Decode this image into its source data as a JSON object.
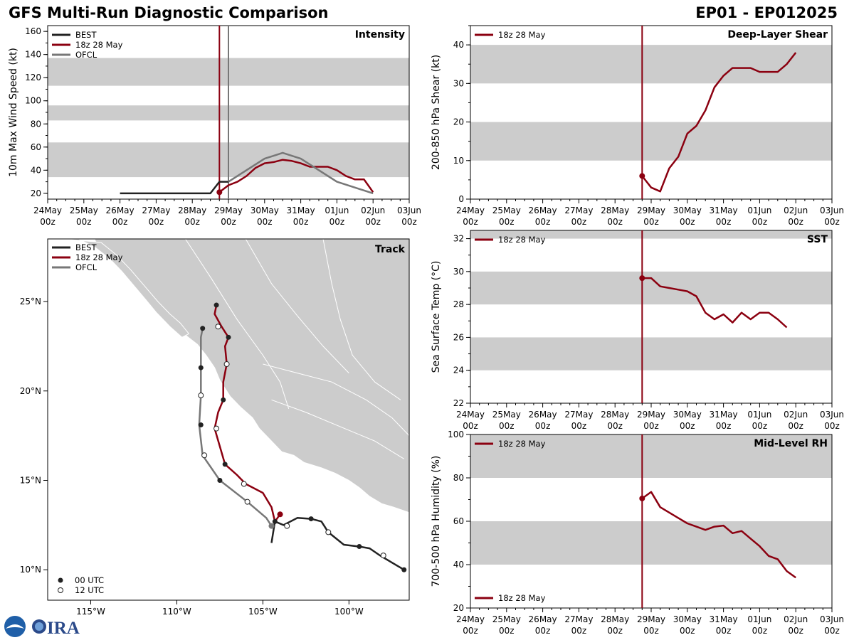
{
  "header": {
    "title": "GFS Multi-Run Diagnostic Comparison",
    "storm_id": "EP01 - EP012025"
  },
  "colors": {
    "best": "#222222",
    "run": "#8b0010",
    "ofcl": "#777777",
    "band": "#cccccc",
    "land": "#cccccc"
  },
  "time_axis": {
    "ticks": [
      {
        "top": "24May",
        "bottom": "00z"
      },
      {
        "top": "25May",
        "bottom": "00z"
      },
      {
        "top": "26May",
        "bottom": "00z"
      },
      {
        "top": "27May",
        "bottom": "00z"
      },
      {
        "top": "28May",
        "bottom": "00z"
      },
      {
        "top": "29May",
        "bottom": "00z"
      },
      {
        "top": "30May",
        "bottom": "00z"
      },
      {
        "top": "31May",
        "bottom": "00z"
      },
      {
        "top": "01Jun",
        "bottom": "00z"
      },
      {
        "top": "02Jun",
        "bottom": "00z"
      },
      {
        "top": "03Jun",
        "bottom": "00z"
      }
    ]
  },
  "chart_data": [
    {
      "id": "intensity",
      "type": "line",
      "title": "Intensity",
      "ylabel": "10m Max Wind Speed (kt)",
      "xlabel": "",
      "xlim": [
        0,
        10
      ],
      "ylim": [
        15,
        165
      ],
      "yticks": [
        20,
        40,
        60,
        80,
        100,
        120,
        140,
        160
      ],
      "bands": [
        [
          34,
          64
        ],
        [
          83,
          96
        ],
        [
          113,
          137
        ]
      ],
      "vlines": [
        {
          "x": 4.75,
          "series": "run"
        },
        {
          "x": 5.0,
          "series": "ofcl"
        }
      ],
      "legend": [
        "BEST",
        "18z 28 May",
        "OFCL"
      ],
      "series": [
        {
          "name": "BEST",
          "key": "best",
          "x": [
            2,
            2.5,
            3,
            3.5,
            4,
            4.5,
            4.75,
            5.0
          ],
          "y": [
            20,
            20,
            20,
            20,
            20,
            20,
            30,
            30
          ]
        },
        {
          "name": "18z 28 May",
          "key": "run",
          "marker_first": true,
          "x": [
            4.75,
            5.0,
            5.25,
            5.5,
            5.75,
            6.0,
            6.25,
            6.5,
            6.75,
            7.0,
            7.25,
            7.5,
            7.75,
            8.0,
            8.25,
            8.5,
            8.75,
            9.0
          ],
          "y": [
            21,
            27,
            30,
            35,
            42,
            46,
            47,
            49,
            48,
            46,
            43,
            43,
            43,
            40,
            35,
            32,
            32,
            21
          ]
        },
        {
          "name": "OFCL",
          "key": "ofcl",
          "x": [
            5.0,
            5.5,
            6.0,
            6.5,
            7.0,
            8.0,
            9.0
          ],
          "y": [
            30,
            40,
            50,
            55,
            50,
            30,
            20
          ]
        }
      ]
    },
    {
      "id": "shear",
      "type": "line",
      "title": "Deep-Layer Shear",
      "ylabel": "200-850 hPa Shear (kt)",
      "xlabel": "",
      "xlim": [
        0,
        10
      ],
      "ylim": [
        0,
        45
      ],
      "yticks": [
        0,
        10,
        20,
        30,
        40
      ],
      "bands": [
        [
          10,
          20
        ],
        [
          30,
          40
        ]
      ],
      "vlines": [
        {
          "x": 4.75,
          "series": "run"
        }
      ],
      "legend": [
        "18z 28 May"
      ],
      "series": [
        {
          "name": "18z 28 May",
          "key": "run",
          "marker_first": true,
          "x": [
            4.75,
            5.0,
            5.25,
            5.5,
            5.75,
            6.0,
            6.25,
            6.5,
            6.75,
            7.0,
            7.25,
            7.5,
            7.75,
            8.0,
            8.25,
            8.5,
            8.75,
            9.0
          ],
          "y": [
            6,
            3,
            2,
            8,
            11,
            17,
            19,
            23,
            29,
            32,
            34,
            34,
            34,
            33,
            33,
            33,
            35,
            38
          ]
        }
      ]
    },
    {
      "id": "sst",
      "type": "line",
      "title": "SST",
      "ylabel": "Sea Surface Temp (°C)",
      "xlabel": "",
      "xlim": [
        0,
        10
      ],
      "ylim": [
        22,
        32.5
      ],
      "yticks": [
        22,
        24,
        26,
        28,
        30,
        32
      ],
      "bands": [
        [
          24,
          26
        ],
        [
          28,
          30
        ],
        [
          32,
          34
        ]
      ],
      "vlines": [
        {
          "x": 4.75,
          "series": "run"
        }
      ],
      "legend": [
        "18z 28 May"
      ],
      "series": [
        {
          "name": "18z 28 May",
          "key": "run",
          "marker_first": true,
          "x": [
            4.75,
            5.0,
            5.25,
            5.5,
            5.75,
            6.0,
            6.25,
            6.5,
            6.75,
            7.0,
            7.25,
            7.5,
            7.75,
            8.0,
            8.25,
            8.5,
            8.75
          ],
          "y": [
            29.6,
            29.6,
            29.1,
            29.0,
            28.9,
            28.8,
            28.5,
            27.5,
            27.1,
            27.4,
            26.9,
            27.5,
            27.1,
            27.5,
            27.5,
            27.1,
            26.6
          ]
        }
      ]
    },
    {
      "id": "rh",
      "type": "line",
      "title": "Mid-Level RH",
      "ylabel": "700-500 hPa Humidity (%)",
      "xlabel": "",
      "xlim": [
        0,
        10
      ],
      "ylim": [
        20,
        100
      ],
      "yticks": [
        20,
        40,
        60,
        80,
        100
      ],
      "bands": [
        [
          40,
          60
        ],
        [
          80,
          100
        ]
      ],
      "vlines": [
        {
          "x": 4.75,
          "series": "run"
        }
      ],
      "legend": [
        "18z 28 May"
      ],
      "series": [
        {
          "name": "18z 28 May",
          "key": "run",
          "marker_first": true,
          "x": [
            4.75,
            5.0,
            5.25,
            5.5,
            5.75,
            6.0,
            6.25,
            6.5,
            6.75,
            7.0,
            7.25,
            7.5,
            7.75,
            8.0,
            8.25,
            8.5,
            8.75,
            9.0
          ],
          "y": [
            70.5,
            73.5,
            66.5,
            64,
            61.5,
            59,
            57.5,
            56,
            57.5,
            58,
            54.5,
            55.5,
            52,
            48.5,
            44,
            42.5,
            37,
            34
          ]
        }
      ]
    },
    {
      "id": "track",
      "type": "line",
      "title": "Track",
      "xlim": [
        -117.5,
        -96.5
      ],
      "ylim": [
        8.3,
        28.5
      ],
      "xticks": [
        {
          "v": -115,
          "label": "115°W"
        },
        {
          "v": -110,
          "label": "110°W"
        },
        {
          "v": -105,
          "label": "105°W"
        },
        {
          "v": -100,
          "label": "100°W"
        }
      ],
      "yticks": [
        {
          "v": 10,
          "label": "10°N"
        },
        {
          "v": 15,
          "label": "15°N"
        },
        {
          "v": 20,
          "label": "20°N"
        },
        {
          "v": 25,
          "label": "25°N"
        }
      ],
      "legend": [
        "BEST",
        "18z 28 May",
        "OFCL"
      ],
      "marker_legend": [
        "00 UTC",
        "12 UTC"
      ],
      "series": [
        {
          "name": "BEST",
          "key": "best",
          "lon": [
            -96.8,
            -97.5,
            -98.2,
            -98.8,
            -99.4,
            -100.3,
            -101.2,
            -101.6,
            -102.2,
            -103.0,
            -103.8,
            -104.3,
            -104.5
          ],
          "lat": [
            10.0,
            10.4,
            10.8,
            11.2,
            11.3,
            11.4,
            12.1,
            12.7,
            12.85,
            12.9,
            12.5,
            12.7,
            11.5
          ],
          "markers": [
            {
              "lon": -96.8,
              "lat": 10.0,
              "utc": "00"
            },
            {
              "lon": -98.0,
              "lat": 10.8,
              "utc": "12"
            },
            {
              "lon": -99.4,
              "lat": 11.3,
              "utc": "00"
            },
            {
              "lon": -101.2,
              "lat": 12.1,
              "utc": "12"
            },
            {
              "lon": -102.2,
              "lat": 12.85,
              "utc": "00"
            },
            {
              "lon": -103.6,
              "lat": 12.45,
              "utc": "12"
            },
            {
              "lon": -104.3,
              "lat": 12.7,
              "utc": "00"
            }
          ]
        },
        {
          "name": "18z 28 May",
          "key": "run",
          "lon": [
            -104.0,
            -104.3,
            -104.5,
            -105.0,
            -106.0,
            -106.5,
            -107.2,
            -107.8,
            -107.6,
            -107.3,
            -107.3,
            -107.1,
            -107.2,
            -107.0,
            -107.4,
            -107.8,
            -107.7
          ],
          "lat": [
            13.1,
            12.7,
            13.5,
            14.3,
            14.8,
            15.3,
            15.9,
            17.9,
            18.8,
            19.5,
            20.5,
            21.5,
            22.5,
            23.0,
            23.6,
            24.3,
            24.8
          ],
          "markers": [
            {
              "lon": -104.0,
              "lat": 13.1,
              "utc": "start"
            },
            {
              "lon": -106.1,
              "lat": 14.8,
              "utc": "12"
            },
            {
              "lon": -107.2,
              "lat": 15.9,
              "utc": "00"
            },
            {
              "lon": -107.7,
              "lat": 17.9,
              "utc": "12"
            },
            {
              "lon": -107.3,
              "lat": 19.5,
              "utc": "00"
            },
            {
              "lon": -107.1,
              "lat": 21.5,
              "utc": "12"
            },
            {
              "lon": -107.0,
              "lat": 23.0,
              "utc": "00"
            },
            {
              "lon": -107.6,
              "lat": 23.6,
              "utc": "12"
            },
            {
              "lon": -107.7,
              "lat": 24.8,
              "utc": "00"
            }
          ]
        },
        {
          "name": "OFCL",
          "key": "ofcl",
          "lon": [
            -104.5,
            -104.8,
            -105.9,
            -107.5,
            -108.5,
            -108.7,
            -108.6,
            -108.6,
            -108.6,
            -108.5
          ],
          "lat": [
            12.45,
            12.9,
            13.8,
            15.0,
            16.4,
            18.1,
            19.75,
            21.3,
            23.0,
            23.5
          ],
          "markers": [
            {
              "lon": -104.5,
              "lat": 12.45,
              "utc": "start"
            },
            {
              "lon": -105.9,
              "lat": 13.8,
              "utc": "12"
            },
            {
              "lon": -107.5,
              "lat": 15.0,
              "utc": "00"
            },
            {
              "lon": -108.4,
              "lat": 16.4,
              "utc": "12"
            },
            {
              "lon": -108.6,
              "lat": 18.1,
              "utc": "00"
            },
            {
              "lon": -108.6,
              "lat": 19.75,
              "utc": "12"
            },
            {
              "lon": -108.6,
              "lat": 21.3,
              "utc": "00"
            },
            {
              "lon": -108.5,
              "lat": 23.5,
              "utc": "00"
            }
          ]
        }
      ]
    }
  ]
}
